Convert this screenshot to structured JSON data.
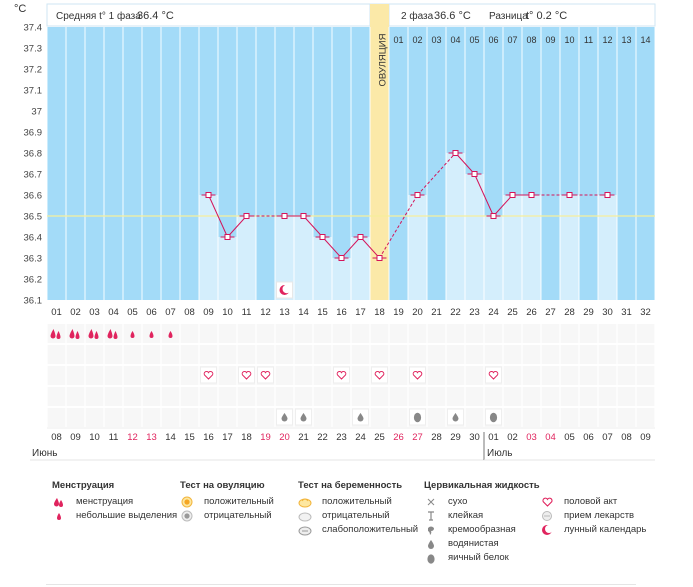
{
  "header": {
    "unit": "°C",
    "phase1_label": "Средняя t° 1 фаза",
    "phase1_value": "36.4 °C",
    "phase2_label": "2 фаза",
    "phase2_value": "36.6 °C",
    "diff_label": "Разница",
    "diff_value": "t° 0.2 °C"
  },
  "chart_data": {
    "type": "line",
    "title": "",
    "ylabel": "°C",
    "ylim": [
      36.1,
      37.4
    ],
    "y_ticks": [
      "37.4",
      "37.3",
      "37.2",
      "37.1",
      "37",
      "36.9",
      "36.8",
      "36.7",
      "36.6",
      "36.5",
      "36.4",
      "36.3",
      "36.2",
      "36.1"
    ],
    "average_line": 36.5,
    "ovulation_label": "ОВУЛЯЦИЯ",
    "ovulation_day": 18,
    "cycle_days": [
      "01",
      "02",
      "03",
      "04",
      "05",
      "06",
      "07",
      "08",
      "09",
      "10",
      "11",
      "12",
      "13",
      "14",
      "15",
      "16",
      "17",
      "18",
      "19",
      "20",
      "21",
      "22",
      "23",
      "24",
      "25",
      "26",
      "27",
      "28",
      "29",
      "30",
      "31",
      "32"
    ],
    "post_ovulation_days": [
      "01",
      "02",
      "03",
      "04",
      "05",
      "06",
      "07",
      "08",
      "09",
      "10",
      "11",
      "12",
      "13",
      "14"
    ],
    "series": [
      {
        "name": "temperature",
        "points": [
          {
            "day": 9,
            "value": 36.6
          },
          {
            "day": 10,
            "value": 36.4
          },
          {
            "day": 11,
            "value": 36.5
          },
          {
            "day": 13,
            "value": 36.5
          },
          {
            "day": 14,
            "value": 36.5
          },
          {
            "day": 15,
            "value": 36.4
          },
          {
            "day": 16,
            "value": 36.3
          },
          {
            "day": 17,
            "value": 36.4
          },
          {
            "day": 18,
            "value": 36.3
          },
          {
            "day": 20,
            "value": 36.6
          },
          {
            "day": 22,
            "value": 36.8
          },
          {
            "day": 23,
            "value": 36.7
          },
          {
            "day": 24,
            "value": 36.5
          },
          {
            "day": 25,
            "value": 36.6
          },
          {
            "day": 26,
            "value": 36.6
          },
          {
            "day": 28,
            "value": 36.6
          },
          {
            "day": 30,
            "value": 36.6
          }
        ]
      }
    ],
    "moon_day": 13,
    "dates": [
      "08",
      "09",
      "10",
      "11",
      "12",
      "13",
      "14",
      "15",
      "16",
      "17",
      "18",
      "19",
      "20",
      "21",
      "22",
      "23",
      "24",
      "25",
      "26",
      "27",
      "28",
      "29",
      "30",
      "01",
      "02",
      "03",
      "04",
      "05",
      "06",
      "07",
      "08",
      "09"
    ],
    "weekend_indices": [
      4,
      5,
      11,
      12,
      18,
      19,
      25,
      26
    ],
    "month_labels": [
      {
        "index": 0,
        "text": "Июнь"
      },
      {
        "index": 23,
        "text": "Июль"
      }
    ],
    "menstruation": [
      {
        "day": 1,
        "type": "menstruation"
      },
      {
        "day": 2,
        "type": "menstruation"
      },
      {
        "day": 3,
        "type": "menstruation"
      },
      {
        "day": 4,
        "type": "menstruation"
      },
      {
        "day": 5,
        "type": "spotting"
      },
      {
        "day": 6,
        "type": "spotting"
      },
      {
        "day": 7,
        "type": "spotting"
      }
    ],
    "intercourse_days": [
      9,
      11,
      12,
      16,
      18,
      20,
      24
    ],
    "cervical_days": [
      {
        "day": 13,
        "type": "watery"
      },
      {
        "day": 14,
        "type": "watery"
      },
      {
        "day": 17,
        "type": "watery"
      },
      {
        "day": 20,
        "type": "egg_white"
      },
      {
        "day": 22,
        "type": "watery"
      },
      {
        "day": 24,
        "type": "egg_white"
      }
    ]
  },
  "legend": {
    "menstruation": {
      "title": "Менструация",
      "items": [
        "менструация",
        "небольшие выделения"
      ]
    },
    "ovulation_test": {
      "title": "Тест на овуляцию",
      "items": [
        "положительный",
        "отрицательный"
      ]
    },
    "pregnancy_test": {
      "title": "Тест на беременность",
      "items": [
        "положительный",
        "отрицательный",
        "слабоположительный"
      ]
    },
    "cervical": {
      "title": "Цервикальная жидкость",
      "items": [
        "сухо",
        "клейкая",
        "кремообразная",
        "водянистая",
        "яичный белок"
      ]
    },
    "other": {
      "items": [
        "половой акт",
        "прием лекарств",
        "лунный календарь"
      ]
    }
  },
  "colors": {
    "sky": "#a3dbf8",
    "bar": "#d4eefc",
    "ovulation": "#fbe9a8",
    "line": "#d4145a",
    "weekend": "#e0245e",
    "grid": "#ffffff",
    "header_border": "#cfe6f3"
  }
}
